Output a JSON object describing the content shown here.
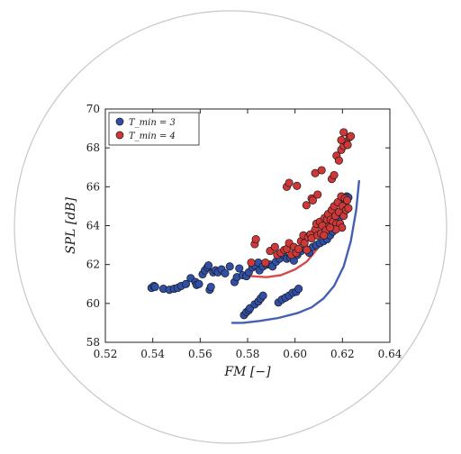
{
  "chart_data": {
    "type": "scatter",
    "title": "",
    "xlabel": "FM [−]",
    "ylabel": "SPL [dB]",
    "xlim": [
      0.52,
      0.64
    ],
    "ylim": [
      58,
      70
    ],
    "xticks": [
      0.52,
      0.54,
      0.56,
      0.58,
      0.6,
      0.62,
      0.64
    ],
    "xtick_labels": [
      "0.52",
      "0.54",
      "0.56",
      "0.58",
      "0.60",
      "0.62",
      "0.64"
    ],
    "yticks": [
      58,
      60,
      62,
      64,
      66,
      68,
      70
    ],
    "ytick_labels": [
      "58",
      "60",
      "62",
      "64",
      "66",
      "68",
      "70"
    ],
    "grid": false,
    "legend_position": "top-left",
    "series": [
      {
        "name": "T_min = 3",
        "legend_label": "T_min = 3",
        "color": "#3050a8",
        "points": [
          [
            0.5395,
            60.8
          ],
          [
            0.5405,
            60.9
          ],
          [
            0.541,
            60.85
          ],
          [
            0.5445,
            60.75
          ],
          [
            0.547,
            60.7
          ],
          [
            0.549,
            60.75
          ],
          [
            0.5505,
            60.8
          ],
          [
            0.552,
            60.9
          ],
          [
            0.554,
            61.0
          ],
          [
            0.556,
            61.3
          ],
          [
            0.558,
            61.1
          ],
          [
            0.5585,
            60.95
          ],
          [
            0.5595,
            61.0
          ],
          [
            0.561,
            61.5
          ],
          [
            0.562,
            61.7
          ],
          [
            0.563,
            61.85
          ],
          [
            0.5635,
            61.95
          ],
          [
            0.564,
            60.7
          ],
          [
            0.5645,
            60.85
          ],
          [
            0.5655,
            61.6
          ],
          [
            0.5665,
            61.7
          ],
          [
            0.5675,
            61.6
          ],
          [
            0.569,
            61.75
          ],
          [
            0.5705,
            61.55
          ],
          [
            0.5725,
            61.9
          ],
          [
            0.5745,
            61.1
          ],
          [
            0.5755,
            61.35
          ],
          [
            0.5765,
            61.8
          ],
          [
            0.578,
            61.45
          ],
          [
            0.5795,
            61.4
          ],
          [
            0.5805,
            61.6
          ],
          [
            0.582,
            61.85
          ],
          [
            0.583,
            61.95
          ],
          [
            0.5845,
            62.1
          ],
          [
            0.585,
            61.7
          ],
          [
            0.5865,
            61.9
          ],
          [
            0.588,
            62.0
          ],
          [
            0.5895,
            62.0
          ],
          [
            0.5905,
            61.9
          ],
          [
            0.592,
            62.15
          ],
          [
            0.5935,
            62.3
          ],
          [
            0.595,
            62.5
          ],
          [
            0.5965,
            62.3
          ],
          [
            0.598,
            62.35
          ],
          [
            0.5995,
            62.2
          ],
          [
            0.601,
            62.5
          ],
          [
            0.6025,
            62.7
          ],
          [
            0.6045,
            62.8
          ],
          [
            0.606,
            62.6
          ],
          [
            0.6075,
            62.9
          ],
          [
            0.609,
            63.0
          ],
          [
            0.6105,
            63.1
          ],
          [
            0.612,
            63.2
          ],
          [
            0.6135,
            63.3
          ],
          [
            0.6148,
            63.5
          ],
          [
            0.616,
            63.7
          ],
          [
            0.617,
            63.9
          ],
          [
            0.6178,
            64.1
          ],
          [
            0.6186,
            64.4
          ],
          [
            0.6194,
            64.7
          ],
          [
            0.6202,
            65.0
          ],
          [
            0.621,
            65.2
          ],
          [
            0.6218,
            65.5
          ],
          [
            0.6225,
            65.45
          ],
          [
            0.5785,
            59.4
          ],
          [
            0.5795,
            59.55
          ],
          [
            0.5805,
            59.65
          ],
          [
            0.581,
            59.75
          ],
          [
            0.583,
            59.95
          ],
          [
            0.5845,
            60.1
          ],
          [
            0.5855,
            60.25
          ],
          [
            0.5865,
            60.4
          ],
          [
            0.593,
            60.05
          ],
          [
            0.5945,
            60.2
          ],
          [
            0.596,
            60.3
          ],
          [
            0.5975,
            60.4
          ],
          [
            0.599,
            60.55
          ],
          [
            0.6005,
            60.6
          ],
          [
            0.6015,
            60.75
          ]
        ],
        "fit_curve": [
          [
            0.5735,
            59.0
          ],
          [
            0.578,
            59.0
          ],
          [
            0.585,
            59.1
          ],
          [
            0.593,
            59.25
          ],
          [
            0.601,
            59.5
          ],
          [
            0.607,
            59.8
          ],
          [
            0.612,
            60.25
          ],
          [
            0.6165,
            60.9
          ],
          [
            0.6205,
            61.9
          ],
          [
            0.6235,
            63.2
          ],
          [
            0.6258,
            64.8
          ],
          [
            0.627,
            66.3
          ]
        ]
      },
      {
        "name": "T_min = 4",
        "legend_label": "T_min = 4",
        "color": "#d03838",
        "points": [
          [
            0.5815,
            62.1
          ],
          [
            0.583,
            63.05
          ],
          [
            0.5835,
            63.3
          ],
          [
            0.5875,
            62.1
          ],
          [
            0.5895,
            62.7
          ],
          [
            0.5915,
            62.9
          ],
          [
            0.5925,
            62.5
          ],
          [
            0.594,
            62.6
          ],
          [
            0.5955,
            62.75
          ],
          [
            0.5965,
            62.8
          ],
          [
            0.5975,
            63.1
          ],
          [
            0.5985,
            62.5
          ],
          [
            0.5995,
            62.9
          ],
          [
            0.6005,
            62.6
          ],
          [
            0.6015,
            62.8
          ],
          [
            0.6025,
            63.2
          ],
          [
            0.6035,
            63.5
          ],
          [
            0.604,
            63.1
          ],
          [
            0.605,
            62.75
          ],
          [
            0.6055,
            63.4
          ],
          [
            0.6065,
            63.55
          ],
          [
            0.607,
            63.35
          ],
          [
            0.6085,
            63.8
          ],
          [
            0.609,
            64.1
          ],
          [
            0.6095,
            63.5
          ],
          [
            0.6105,
            64.2
          ],
          [
            0.611,
            63.6
          ],
          [
            0.6115,
            64.0
          ],
          [
            0.6125,
            64.4
          ],
          [
            0.613,
            63.75
          ],
          [
            0.6135,
            64.3
          ],
          [
            0.614,
            64.6
          ],
          [
            0.6145,
            64.0
          ],
          [
            0.615,
            64.3
          ],
          [
            0.6155,
            64.8
          ],
          [
            0.616,
            64.2
          ],
          [
            0.6165,
            65.0
          ],
          [
            0.617,
            64.5
          ],
          [
            0.6175,
            64.1
          ],
          [
            0.618,
            65.2
          ],
          [
            0.6185,
            64.7
          ],
          [
            0.619,
            64.1
          ],
          [
            0.6195,
            65.5
          ],
          [
            0.62,
            65.0
          ],
          [
            0.6205,
            64.5
          ],
          [
            0.621,
            65.4
          ],
          [
            0.6215,
            64.8
          ],
          [
            0.622,
            65.3
          ],
          [
            0.6225,
            64.9
          ],
          [
            0.6198,
            63.9
          ],
          [
            0.6172,
            63.8
          ],
          [
            0.6148,
            63.9
          ],
          [
            0.6122,
            63.5
          ],
          [
            0.5965,
            66.0
          ],
          [
            0.5975,
            66.2
          ],
          [
            0.6008,
            66.05
          ],
          [
            0.6048,
            65.05
          ],
          [
            0.607,
            65.4
          ],
          [
            0.6095,
            65.6
          ],
          [
            0.6085,
            66.7
          ],
          [
            0.6112,
            66.85
          ],
          [
            0.6075,
            65.3
          ],
          [
            0.6155,
            66.4
          ],
          [
            0.6165,
            66.6
          ],
          [
            0.6175,
            67.6
          ],
          [
            0.6185,
            67.35
          ],
          [
            0.6195,
            67.9
          ],
          [
            0.6205,
            68.1
          ],
          [
            0.6215,
            68.3
          ],
          [
            0.6222,
            68.15
          ],
          [
            0.623,
            68.55
          ],
          [
            0.6195,
            68.4
          ],
          [
            0.6205,
            68.8
          ],
          [
            0.6235,
            68.6
          ]
        ],
        "fit_curve": [
          [
            0.5815,
            61.4
          ],
          [
            0.588,
            61.35
          ],
          [
            0.594,
            61.45
          ],
          [
            0.6,
            61.75
          ],
          [
            0.605,
            62.15
          ],
          [
            0.609,
            62.75
          ],
          [
            0.612,
            63.35
          ]
        ]
      }
    ]
  }
}
